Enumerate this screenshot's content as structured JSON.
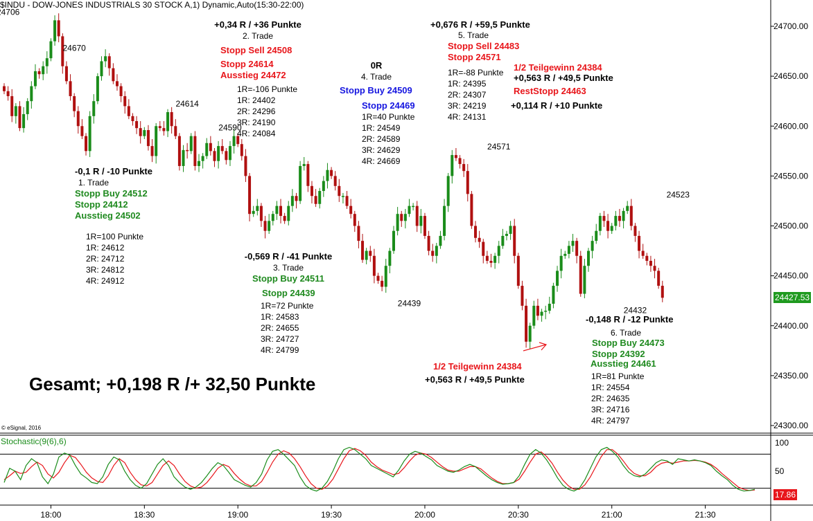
{
  "header": {
    "title": "$INDU - DOW-JONES INDUSTRIALS 30 STOCK A,1) Dynamic,Auto(15:30-22:00)",
    "copyright": "© eSignal, 2016"
  },
  "total_label": "Gesamt; +0,198 R /+ 32,50 Punkte",
  "indicator_label": "Stochastic(9(6),6)",
  "last_price_tag": "24427.53",
  "stoch_value_tag": "17.86",
  "colors": {
    "up": "#1a8c1a",
    "down": "#b01010",
    "stoch_k": "#1a8c1a",
    "stoch_d": "#e8161b",
    "tag_price": "#1f9a1f",
    "tag_stoch": "#e8161b"
  },
  "swing_labels": [
    {
      "text": "24706",
      "t": 1
    },
    {
      "text": "24670",
      "t": 18
    },
    {
      "text": "24614",
      "t": 47
    },
    {
      "text": "24590",
      "t": 58
    },
    {
      "text": "24439",
      "t": 104
    },
    {
      "text": "24571",
      "t": 127
    },
    {
      "text": "24432",
      "t": 162
    },
    {
      "text": "24523",
      "t": 173
    }
  ],
  "trade_blocks": [
    {
      "id": "trade-1",
      "lines": [
        {
          "text": "-0,1 R / -10 Punkte",
          "style": "bold blk"
        },
        {
          "text": "1. Trade",
          "style": "norm"
        },
        {
          "text": "Stopp Buy 24512",
          "style": "bold green"
        },
        {
          "text": "Stopp 24412",
          "style": "bold green"
        },
        {
          "text": "Ausstieg 24502",
          "style": "bold green"
        }
      ]
    },
    {
      "id": "trade-1-levels",
      "lines": [
        {
          "text": "1R=100 Punkte",
          "style": "norm"
        },
        {
          "text": "1R: 24612",
          "style": "norm"
        },
        {
          "text": "2R: 24712",
          "style": "norm"
        },
        {
          "text": "3R: 24812",
          "style": "norm"
        },
        {
          "text": "4R: 24912",
          "style": "norm"
        }
      ]
    },
    {
      "id": "trade-2",
      "lines": [
        {
          "text": "+0,34 R / +36 Punkte",
          "style": "bold blk"
        },
        {
          "text": "2. Trade",
          "style": "norm"
        }
      ]
    },
    {
      "id": "trade-2-orders",
      "lines": [
        {
          "text": "Stopp Sell 24508",
          "style": "bold red"
        }
      ]
    },
    {
      "id": "trade-2-stops",
      "lines": [
        {
          "text": "Stopp 24614",
          "style": "bold red"
        },
        {
          "text": "Ausstieg 24472",
          "style": "bold red"
        }
      ]
    },
    {
      "id": "trade-2-levels",
      "lines": [
        {
          "text": "1R=-106 Punkte",
          "style": "norm"
        },
        {
          "text": "1R: 24402",
          "style": "norm"
        },
        {
          "text": "2R: 24296",
          "style": "norm"
        },
        {
          "text": "3R: 24190",
          "style": "norm"
        },
        {
          "text": "4R: 24084",
          "style": "norm"
        }
      ]
    },
    {
      "id": "trade-3",
      "lines": [
        {
          "text": "-0,569 R / -41 Punkte",
          "style": "bold blk"
        },
        {
          "text": "3. Trade",
          "style": "norm"
        },
        {
          "text": "Stopp Buy 24511",
          "style": "bold green"
        }
      ]
    },
    {
      "id": "trade-3-stop",
      "lines": [
        {
          "text": "Stopp 24439",
          "style": "bold green"
        }
      ]
    },
    {
      "id": "trade-3-levels",
      "lines": [
        {
          "text": "1R=72 Punkte",
          "style": "norm"
        },
        {
          "text": "1R: 24583",
          "style": "norm"
        },
        {
          "text": "2R: 24655",
          "style": "norm"
        },
        {
          "text": "3R: 24727",
          "style": "norm"
        },
        {
          "text": "4R: 24799",
          "style": "norm"
        }
      ]
    },
    {
      "id": "trade-4",
      "lines": [
        {
          "text": "0R",
          "style": "bold blk"
        },
        {
          "text": "4. Trade",
          "style": "norm"
        }
      ]
    },
    {
      "id": "trade-4-order",
      "lines": [
        {
          "text": "Stopp Buy 24509",
          "style": "bold blue"
        }
      ]
    },
    {
      "id": "trade-4-stop",
      "lines": [
        {
          "text": "Stopp 24469",
          "style": "bold blue"
        }
      ]
    },
    {
      "id": "trade-4-levels",
      "lines": [
        {
          "text": "1R=40 Punkte",
          "style": "norm"
        },
        {
          "text": "1R: 24549",
          "style": "norm"
        },
        {
          "text": "2R: 24589",
          "style": "norm"
        },
        {
          "text": "3R: 24629",
          "style": "norm"
        },
        {
          "text": "4R: 24669",
          "style": "norm"
        }
      ]
    },
    {
      "id": "trade-5",
      "lines": [
        {
          "text": "+0,676 R / +59,5 Punkte",
          "style": "bold blk"
        }
      ]
    },
    {
      "id": "trade-5-name",
      "lines": [
        {
          "text": "5. Trade",
          "style": "norm"
        }
      ]
    },
    {
      "id": "trade-5-orders",
      "lines": [
        {
          "text": "Stopp Sell 24483",
          "style": "bold red"
        },
        {
          "text": "Stopp 24571",
          "style": "bold red"
        }
      ]
    },
    {
      "id": "trade-5-levels",
      "lines": [
        {
          "text": "1R=-88 Punkte",
          "style": "norm"
        },
        {
          "text": "1R: 24395",
          "style": "norm"
        },
        {
          "text": "2R: 24307",
          "style": "norm"
        },
        {
          "text": "3R: 24219",
          "style": "norm"
        },
        {
          "text": "4R: 24131",
          "style": "norm"
        }
      ]
    },
    {
      "id": "trade-5-partial",
      "lines": [
        {
          "text": "1/2 Teilgewinn 24384",
          "style": "bold red"
        }
      ]
    },
    {
      "id": "trade-5-partial-result",
      "lines": [
        {
          "text": "+0,563 R / +49,5 Punkte",
          "style": "bold blk"
        }
      ]
    },
    {
      "id": "trade-5-reststop",
      "lines": [
        {
          "text": "RestStopp 24463",
          "style": "bold red"
        }
      ]
    },
    {
      "id": "trade-5-rest-result",
      "lines": [
        {
          "text": "+0,114 R / +10 Punkte",
          "style": "bold blk"
        }
      ]
    },
    {
      "id": "trade-5-bottom",
      "lines": [
        {
          "text": "1/2 Teilgewinn 24384",
          "style": "bold red"
        }
      ]
    },
    {
      "id": "trade-5-bottom-result",
      "lines": [
        {
          "text": "+0,563 R / +49,5 Punkte",
          "style": "bold blk"
        }
      ]
    },
    {
      "id": "trade-6",
      "lines": [
        {
          "text": "-0,148 R / -12 Punkte",
          "style": "bold blk"
        }
      ]
    },
    {
      "id": "trade-6-name",
      "lines": [
        {
          "text": "6. Trade",
          "style": "norm"
        }
      ]
    },
    {
      "id": "trade-6-orders",
      "lines": [
        {
          "text": "Stopp Buy 24473",
          "style": "bold green"
        },
        {
          "text": "Stopp 24392",
          "style": "bold green"
        }
      ]
    },
    {
      "id": "trade-6-exit",
      "lines": [
        {
          "text": "Ausstieg 24461",
          "style": "bold green"
        }
      ]
    },
    {
      "id": "trade-6-levels",
      "lines": [
        {
          "text": "1R=81 Punkte",
          "style": "norm"
        },
        {
          "text": "1R: 24554",
          "style": "norm"
        },
        {
          "text": "2R: 24635",
          "style": "norm"
        },
        {
          "text": "3R: 24716",
          "style": "norm"
        },
        {
          "text": "4R: 24797",
          "style": "norm"
        }
      ]
    }
  ],
  "chart_data": {
    "type": "candlestick",
    "price_axis": {
      "min": 24300,
      "max": 24700,
      "ticks": [
        "24700.00",
        "24650.00",
        "24600.00",
        "24550.00",
        "24500.00",
        "24450.00",
        "24400.00",
        "24350.00",
        "24300.00"
      ]
    },
    "stoch_axis": {
      "min": 0,
      "max": 100,
      "ticks": [
        "100",
        "50"
      ],
      "bands": [
        80,
        20
      ]
    },
    "time_axis": {
      "ticks": [
        {
          "label": "18:00",
          "t": 12
        },
        {
          "label": "18:30",
          "t": 36
        },
        {
          "label": "19:00",
          "t": 60
        },
        {
          "label": "19:30",
          "t": 84
        },
        {
          "label": "20:00",
          "t": 108
        },
        {
          "label": "20:30",
          "t": 132
        },
        {
          "label": "21:00",
          "t": 156
        },
        {
          "label": "21:30",
          "t": 180
        }
      ]
    },
    "closes": [
      24635,
      24630,
      24610,
      24620,
      24598,
      24612,
      24625,
      24640,
      24655,
      24652,
      24660,
      24668,
      24685,
      24706,
      24690,
      24660,
      24645,
      24630,
      24615,
      24600,
      24590,
      24575,
      24610,
      24625,
      24650,
      24665,
      24670,
      24658,
      24645,
      24640,
      24630,
      24620,
      24610,
      24605,
      24598,
      24590,
      24596,
      24580,
      24570,
      24600,
      24598,
      24595,
      24614,
      24600,
      24590,
      24560,
      24576,
      24575,
      24590,
      24560,
      24565,
      24570,
      24583,
      24575,
      24565,
      24580,
      24575,
      24566,
      24580,
      24590,
      24582,
      24570,
      24550,
      24512,
      24515,
      24520,
      24505,
      24495,
      24505,
      24512,
      24520,
      24510,
      24505,
      24520,
      24530,
      24525,
      24560,
      24562,
      24540,
      24530,
      24522,
      24535,
      24545,
      24556,
      24550,
      24540,
      24530,
      24530,
      24520,
      24512,
      24500,
      24485,
      24466,
      24475,
      24470,
      24450,
      24445,
      24439,
      24460,
      24475,
      24495,
      24512,
      24505,
      24512,
      24520,
      24520,
      24500,
      24510,
      24490,
      24475,
      24470,
      24480,
      24490,
      24520,
      24550,
      24571,
      24568,
      24562,
      24555,
      24532,
      24500,
      24488,
      24484,
      24470,
      24465,
      24463,
      24470,
      24480,
      24490,
      24492,
      24500,
      24470,
      24440,
      24420,
      24384,
      24400,
      24420,
      24410,
      24414,
      24415,
      24422,
      24440,
      24455,
      24470,
      24472,
      24480,
      24485,
      24470,
      24432,
      24460,
      24475,
      24485,
      24495,
      24510,
      24505,
      24495,
      24500,
      24510,
      24505,
      24515,
      24520,
      24500,
      24490,
      24475,
      24470,
      24465,
      24460,
      24455,
      24440,
      24428
    ],
    "stochastic": {
      "k": [
        30,
        55,
        50,
        35,
        60,
        72,
        65,
        40,
        28,
        45,
        75,
        82,
        78,
        60,
        45,
        38,
        30,
        28,
        40,
        62,
        75,
        70,
        50,
        35,
        25,
        20,
        28,
        45,
        62,
        72,
        60,
        40,
        30,
        22,
        18,
        22,
        30,
        42,
        55,
        65,
        60,
        48,
        35,
        30,
        25,
        22,
        30,
        45,
        70,
        85,
        88,
        80,
        70,
        60,
        40,
        25,
        18,
        15,
        20,
        32,
        50,
        72,
        88,
        92,
        88,
        80,
        72,
        60,
        55,
        50,
        45,
        40,
        52,
        68,
        80,
        85,
        82,
        76,
        70,
        60,
        55,
        50,
        48,
        52,
        58,
        62,
        58,
        50,
        42,
        35,
        30,
        27,
        28,
        30,
        42,
        62,
        80,
        88,
        82,
        70,
        55,
        38,
        25,
        18,
        15,
        20,
        35,
        55,
        75,
        88,
        92,
        85,
        75,
        60,
        48,
        42,
        40,
        45,
        55,
        65,
        70,
        68,
        62,
        72,
        70,
        68,
        70,
        68,
        65,
        60,
        50,
        42,
        35,
        25,
        18,
        15,
        16,
        18
      ],
      "d": [
        35,
        42,
        50,
        46,
        48,
        58,
        66,
        60,
        45,
        38,
        48,
        65,
        78,
        74,
        62,
        48,
        38,
        32,
        30,
        42,
        60,
        72,
        65,
        48,
        35,
        26,
        24,
        30,
        45,
        60,
        68,
        60,
        45,
        32,
        24,
        20,
        22,
        30,
        42,
        55,
        62,
        58,
        46,
        36,
        28,
        24,
        24,
        32,
        48,
        66,
        80,
        86,
        82,
        72,
        58,
        42,
        28,
        20,
        18,
        24,
        36,
        54,
        72,
        86,
        90,
        86,
        78,
        66,
        58,
        52,
        48,
        44,
        46,
        56,
        68,
        78,
        82,
        80,
        74,
        66,
        58,
        52,
        50,
        50,
        54,
        58,
        58,
        54,
        46,
        38,
        32,
        28,
        28,
        30,
        36,
        50,
        66,
        80,
        84,
        76,
        64,
        48,
        34,
        24,
        18,
        18,
        26,
        40,
        58,
        76,
        88,
        88,
        80,
        68,
        55,
        46,
        42,
        42,
        48,
        58,
        64,
        66,
        64,
        66,
        68,
        68,
        69,
        68,
        66,
        62,
        55,
        46,
        38,
        30,
        22,
        18,
        16,
        17
      ]
    }
  }
}
